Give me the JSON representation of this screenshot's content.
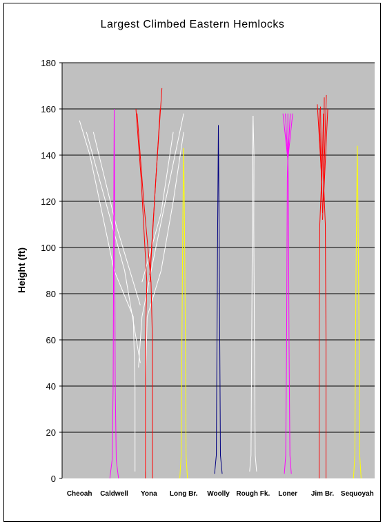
{
  "chart_data": {
    "type": "line",
    "title": "Largest Climbed Eastern Hemlocks",
    "xlabel": "",
    "ylabel": "Height (ft)",
    "ylim": [
      0,
      180
    ],
    "yticks": [
      0,
      20,
      40,
      60,
      80,
      100,
      120,
      140,
      160,
      180
    ],
    "grid": true,
    "legend": "none",
    "plot_background": "#c0c0c0",
    "categories": [
      "Cheoah",
      "Caldwell",
      "Yona",
      "Long Br.",
      "Woolly",
      "Rough Fk.",
      "Loner",
      "Jim Br.",
      "Sequoyah"
    ],
    "trees": [
      {
        "name": "Cheoah",
        "color": "#ffffff",
        "paths": [
          [
            [
              3.2,
              3
            ],
            [
              3.2,
              40
            ],
            [
              3.1,
              70
            ],
            [
              2.0,
              90
            ],
            [
              0.6,
              140
            ],
            [
              0.0,
              155
            ]
          ],
          [
            [
              3.8,
              3
            ],
            [
              3.8,
              40
            ],
            [
              3.9,
              70
            ],
            [
              4.7,
              90
            ],
            [
              5.4,
              120
            ],
            [
              6.0,
              150
            ]
          ],
          [
            [
              3.5,
              50
            ],
            [
              2.6,
              90
            ],
            [
              1.5,
              120
            ],
            [
              0.4,
              150
            ]
          ],
          [
            [
              3.4,
              48
            ],
            [
              3.6,
              70
            ],
            [
              4.4,
              100
            ],
            [
              5.5,
              140
            ],
            [
              6.0,
              158
            ]
          ],
          [
            [
              3.5,
              75
            ],
            [
              2.1,
              110
            ],
            [
              0.8,
              150
            ]
          ],
          [
            [
              3.6,
              85
            ],
            [
              4.7,
              115
            ],
            [
              5.4,
              150
            ]
          ]
        ]
      },
      {
        "name": "Caldwell",
        "color": "#ff00ff",
        "paths": [
          [
            [
              -0.25,
              0
            ],
            [
              -0.12,
              8
            ],
            [
              -0.06,
              40
            ],
            [
              -0.03,
              100
            ],
            [
              -0.01,
              140
            ],
            [
              0,
              160
            ]
          ],
          [
            [
              0.25,
              0
            ],
            [
              0.12,
              8
            ],
            [
              0.06,
              40
            ],
            [
              0.03,
              100
            ],
            [
              0.01,
              140
            ],
            [
              0,
              160
            ]
          ]
        ]
      },
      {
        "name": "Yona",
        "color": "#ff0000",
        "paths": [
          [
            [
              -0.2,
              0
            ],
            [
              -0.2,
              60
            ],
            [
              -0.12,
              85
            ],
            [
              -0.45,
              130
            ],
            [
              -0.75,
              160
            ]
          ],
          [
            [
              0.2,
              0
            ],
            [
              0.2,
              60
            ],
            [
              0.12,
              85
            ],
            [
              -0.3,
              120
            ],
            [
              -0.68,
              158
            ]
          ],
          [
            [
              0.05,
              85
            ],
            [
              0.4,
              130
            ],
            [
              0.75,
              169
            ]
          ],
          [
            [
              0.05,
              88
            ],
            [
              0.32,
              120
            ],
            [
              0.65,
              160
            ]
          ]
        ]
      },
      {
        "name": "Long Br.",
        "color": "#ffff00",
        "paths": [
          [
            [
              -0.22,
              0
            ],
            [
              -0.14,
              10
            ],
            [
              -0.1,
              60
            ],
            [
              -0.05,
              110
            ],
            [
              0,
              143
            ]
          ],
          [
            [
              0.22,
              0
            ],
            [
              0.14,
              10
            ],
            [
              0.1,
              60
            ],
            [
              0.05,
              110
            ],
            [
              0,
              143
            ]
          ]
        ]
      },
      {
        "name": "Woolly",
        "color": "#000080",
        "paths": [
          [
            [
              -0.22,
              2
            ],
            [
              -0.12,
              10
            ],
            [
              -0.08,
              60
            ],
            [
              -0.04,
              110
            ],
            [
              0,
              153
            ]
          ],
          [
            [
              0.22,
              2
            ],
            [
              0.12,
              10
            ],
            [
              0.08,
              60
            ],
            [
              0.04,
              110
            ],
            [
              0,
              153
            ]
          ]
        ]
      },
      {
        "name": "Rough Fk.",
        "color": "#ffffff",
        "paths": [
          [
            [
              -0.2,
              3
            ],
            [
              -0.12,
              10
            ],
            [
              -0.08,
              60
            ],
            [
              -0.04,
              110
            ],
            [
              -0.05,
              140
            ],
            [
              0,
              157
            ]
          ],
          [
            [
              0.2,
              3
            ],
            [
              0.12,
              10
            ],
            [
              0.08,
              60
            ],
            [
              0.04,
              110
            ],
            [
              0.05,
              140
            ],
            [
              0,
              157
            ]
          ]
        ]
      },
      {
        "name": "Loner",
        "color": "#ff00ff",
        "paths": [
          [
            [
              -0.2,
              2
            ],
            [
              -0.12,
              10
            ],
            [
              -0.07,
              60
            ],
            [
              -0.03,
              130
            ],
            [
              0,
              138
            ]
          ],
          [
            [
              0.2,
              2
            ],
            [
              0.12,
              10
            ],
            [
              0.07,
              60
            ],
            [
              0.03,
              130
            ],
            [
              0,
              138
            ]
          ],
          [
            [
              0,
              138
            ],
            [
              -0.28,
              158
            ]
          ],
          [
            [
              0,
              138
            ],
            [
              -0.14,
              158
            ]
          ],
          [
            [
              0,
              138
            ],
            [
              0.0,
              158
            ]
          ],
          [
            [
              0,
              138
            ],
            [
              0.14,
              158
            ]
          ],
          [
            [
              0,
              138
            ],
            [
              0.28,
              158
            ]
          ]
        ]
      },
      {
        "name": "Jim Br.",
        "color": "#ff0000",
        "paths": [
          [
            [
              -0.2,
              0
            ],
            [
              -0.2,
              60
            ],
            [
              -0.16,
              110
            ],
            [
              -0.05,
              130
            ]
          ],
          [
            [
              0.2,
              0
            ],
            [
              0.2,
              60
            ],
            [
              0.16,
              110
            ],
            [
              0.05,
              130
            ]
          ],
          [
            [
              -0.05,
              130
            ],
            [
              -0.3,
              162
            ]
          ],
          [
            [
              -0.05,
              130
            ],
            [
              -0.12,
              161
            ]
          ],
          [
            [
              0.05,
              130
            ],
            [
              0.1,
              165
            ]
          ],
          [
            [
              0.0,
              112
            ],
            [
              0.22,
              166
            ]
          ],
          [
            [
              0.0,
              115
            ],
            [
              -0.2,
              160
            ]
          ],
          [
            [
              0.05,
              120
            ],
            [
              0.3,
              160
            ]
          ],
          [
            [
              -0.05,
              125
            ],
            [
              0.05,
              158
            ]
          ]
        ]
      },
      {
        "name": "Sequoyah",
        "color": "#ffff00",
        "paths": [
          [
            [
              -0.22,
              0
            ],
            [
              -0.14,
              10
            ],
            [
              -0.1,
              60
            ],
            [
              -0.05,
              110
            ],
            [
              0,
              144
            ]
          ],
          [
            [
              0.22,
              0
            ],
            [
              0.14,
              10
            ],
            [
              0.1,
              60
            ],
            [
              0.05,
              110
            ],
            [
              0,
              144
            ]
          ]
        ]
      }
    ]
  }
}
